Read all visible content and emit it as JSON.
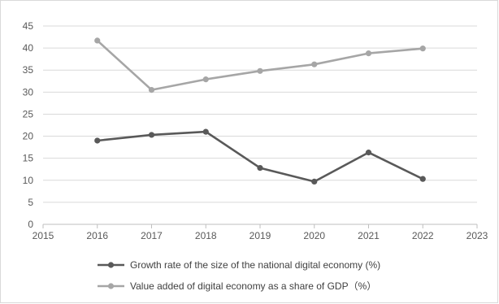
{
  "chart_data": {
    "type": "line",
    "x": [
      2016,
      2017,
      2018,
      2019,
      2020,
      2021,
      2022
    ],
    "xlim": [
      2015,
      2023
    ],
    "xticks": [
      2015,
      2016,
      2017,
      2018,
      2019,
      2020,
      2021,
      2022,
      2023
    ],
    "ylim": [
      0,
      45
    ],
    "yticks": [
      0,
      5,
      10,
      15,
      20,
      25,
      30,
      35,
      40,
      45
    ],
    "grid": "horizontal",
    "legend_position": "bottom",
    "series": [
      {
        "name": "Growth rate of the size of the national digital economy (%)",
        "color": "#595959",
        "values": [
          19.0,
          20.3,
          21.0,
          12.8,
          9.7,
          16.3,
          10.3
        ]
      },
      {
        "name": "Value added of digital economy as a share of GDP（%）",
        "color": "#a6a6a6",
        "values": [
          41.7,
          30.5,
          32.9,
          34.8,
          36.3,
          38.8,
          39.9
        ]
      }
    ]
  }
}
